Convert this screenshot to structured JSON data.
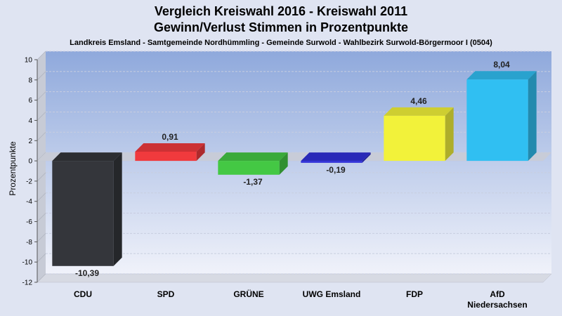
{
  "chart_data": {
    "type": "bar",
    "title": "Vergleich Kreiswahl 2016 - Kreiswahl 2011",
    "title2": "Gewinn/Verlust Stimmen in Prozentpunkte",
    "subtitle": "Landkreis Emsland - Samtgemeinde Nordhümmling - Gemeinde Surwold - Wahlbezirk Surwold-Börgermoor I (0504)",
    "ylabel": "Prozentpunkte",
    "xlabel": "",
    "ylim": [
      -12,
      10
    ],
    "yticks": [
      10,
      8,
      6,
      4,
      2,
      0,
      -2,
      -4,
      -6,
      -8,
      -10,
      -12
    ],
    "grid": true,
    "categories": [
      "CDU",
      "SPD",
      "GRÜNE",
      "UWG Emsland",
      "FDP",
      "AfD Niedersachsen"
    ],
    "category_lines": [
      [
        "CDU"
      ],
      [
        "SPD"
      ],
      [
        "GRÜNE"
      ],
      [
        "UWG Emsland"
      ],
      [
        "FDP"
      ],
      [
        "AfD",
        "Niedersachsen"
      ]
    ],
    "values": [
      -10.39,
      0.91,
      -1.37,
      -0.19,
      4.46,
      8.04
    ],
    "value_labels": [
      "-10,39",
      "0,91",
      "-1,37",
      "-0,19",
      "4,46",
      "8,04"
    ],
    "colors": [
      "#34363b",
      "#f03a3d",
      "#44c844",
      "#3030d8",
      "#f2f23a",
      "#30bff2"
    ]
  }
}
